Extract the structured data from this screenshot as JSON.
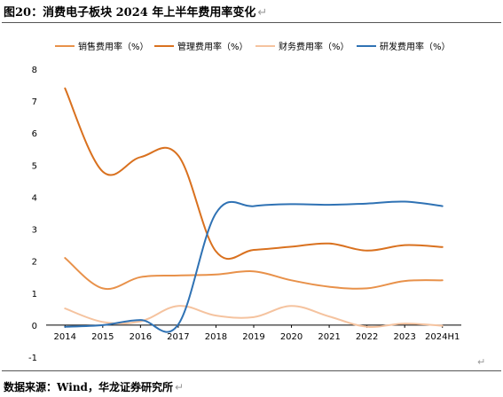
{
  "title": "图20：消费电子板块 2024 年上半年费用率变化",
  "return_mark": "↵",
  "source": "数据来源：Wind，华龙证券研究所",
  "colors": {
    "sales": "#e8914a",
    "admin": "#d9711f",
    "finance": "#f5c39f",
    "rnd": "#2f72b4",
    "zero_line": "#000000",
    "grid": "#d9d9d9"
  },
  "chart_data": {
    "type": "line",
    "title": "",
    "xlabel": "",
    "ylabel": "",
    "categories": [
      "2014",
      "2015",
      "2016",
      "2017",
      "2018",
      "2019",
      "2020",
      "2021",
      "2022",
      "2023",
      "2024H1"
    ],
    "ylim": [
      -1,
      8
    ],
    "yticks": [
      "-1",
      "0",
      "1",
      "2",
      "3",
      "4",
      "5",
      "6",
      "7",
      "8"
    ],
    "legend_position": "top",
    "smooth": true,
    "series": [
      {
        "name": "销售费用率（%）",
        "color_key": "sales",
        "values": [
          2.1,
          1.15,
          1.5,
          1.55,
          1.58,
          1.68,
          1.4,
          1.2,
          1.15,
          1.38,
          1.4
        ]
      },
      {
        "name": "管理费用率（%）",
        "color_key": "admin",
        "values": [
          7.4,
          4.8,
          5.25,
          5.3,
          2.3,
          2.35,
          2.45,
          2.55,
          2.33,
          2.5,
          2.44
        ]
      },
      {
        "name": "财务费用率（%）",
        "color_key": "finance",
        "values": [
          0.52,
          0.1,
          0.12,
          0.6,
          0.3,
          0.25,
          0.6,
          0.27,
          -0.05,
          0.05,
          -0.02
        ]
      },
      {
        "name": "研发费用率（%）",
        "color_key": "rnd",
        "values": [
          -0.05,
          0.0,
          0.16,
          0.02,
          3.5,
          3.72,
          3.78,
          3.76,
          3.8,
          3.86,
          3.72
        ]
      }
    ]
  }
}
